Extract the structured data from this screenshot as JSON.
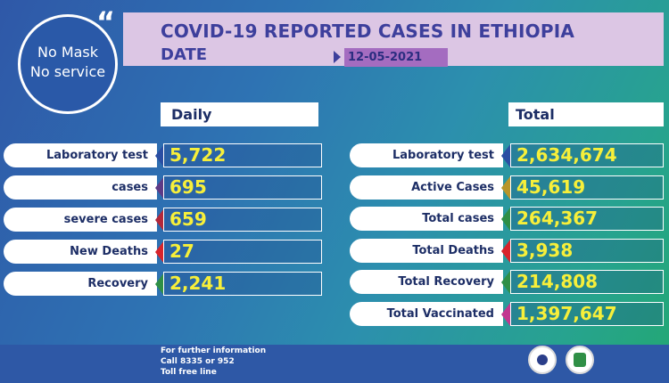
{
  "header": {
    "title": "COVID-19 REPORTED CASES IN ETHIOPIA",
    "date_label": "DATE",
    "date_value": "12-05-2021"
  },
  "badge": {
    "quote": "“",
    "line1": "No Mask",
    "line2": "No service"
  },
  "daily": {
    "heading": "Daily",
    "rows": [
      {
        "label": "Laboratory test",
        "value": "5,722",
        "arrow_color": "#2a4ea3"
      },
      {
        "label": "cases",
        "value": "695",
        "arrow_color": "#5e3a86"
      },
      {
        "label": "severe cases",
        "value": "659",
        "arrow_color": "#b3283a"
      },
      {
        "label": "New Deaths",
        "value": "27",
        "arrow_color": "#d8242b"
      },
      {
        "label": "Recovery",
        "value": "2,241",
        "arrow_color": "#2f8f46"
      }
    ]
  },
  "total": {
    "heading": "Total",
    "rows": [
      {
        "label": "Laboratory test",
        "value": "2,634,674",
        "arrow_color": "#2a4ea3"
      },
      {
        "label": "Active Cases",
        "value": "45,619",
        "arrow_color": "#b8962a"
      },
      {
        "label": "Total cases",
        "value": "264,367",
        "arrow_color": "#2f8f46"
      },
      {
        "label": "Total Deaths",
        "value": "3,938",
        "arrow_color": "#d8242b"
      },
      {
        "label": "Total Recovery",
        "value": "214,808",
        "arrow_color": "#2f8f46"
      },
      {
        "label": "Total Vaccinated",
        "value": "1,397,647",
        "arrow_color": "#c2368f"
      }
    ]
  },
  "footer": {
    "line1": "For further information",
    "line2": "Call 8335 or 952",
    "line3": "Toll free line"
  },
  "logos": [
    "ministry-of-health-logo",
    "ephi-logo"
  ]
}
